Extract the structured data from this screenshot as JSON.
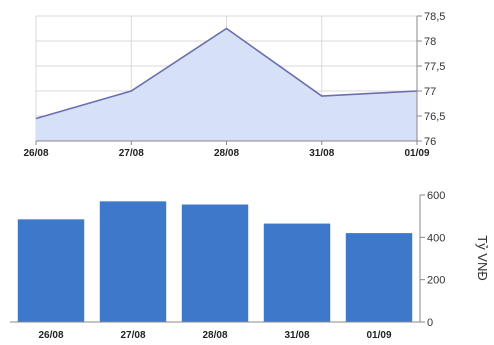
{
  "chart_data": [
    {
      "type": "area",
      "categories": [
        "26/08",
        "27/08",
        "28/08",
        "31/08",
        "01/09"
      ],
      "values": [
        76.45,
        77.0,
        78.25,
        76.9,
        77.0
      ],
      "ylim": [
        76,
        78.5
      ],
      "y_ticks": [
        "76",
        "76,5",
        "77",
        "77,5",
        "78",
        "78,5"
      ],
      "y_tick_values": [
        76,
        76.5,
        77,
        77.5,
        78,
        78.5
      ],
      "y_axis_side": "right",
      "grid": true,
      "line_color": "#6b6fb0",
      "fill_color": "#d6e0f7",
      "grid_color": "#d8d8d8"
    },
    {
      "type": "bar",
      "categories": [
        "26/08",
        "27/08",
        "28/08",
        "31/08",
        "01/09"
      ],
      "values": [
        485,
        570,
        555,
        465,
        420
      ],
      "ylim": [
        0,
        600
      ],
      "y_ticks": [
        "0",
        "200",
        "400",
        "600"
      ],
      "y_tick_values": [
        0,
        200,
        400,
        600
      ],
      "y_axis_side": "right",
      "ylabel": "Tỷ VNĐ",
      "grid": false,
      "bar_color": "#3d78cb"
    }
  ]
}
